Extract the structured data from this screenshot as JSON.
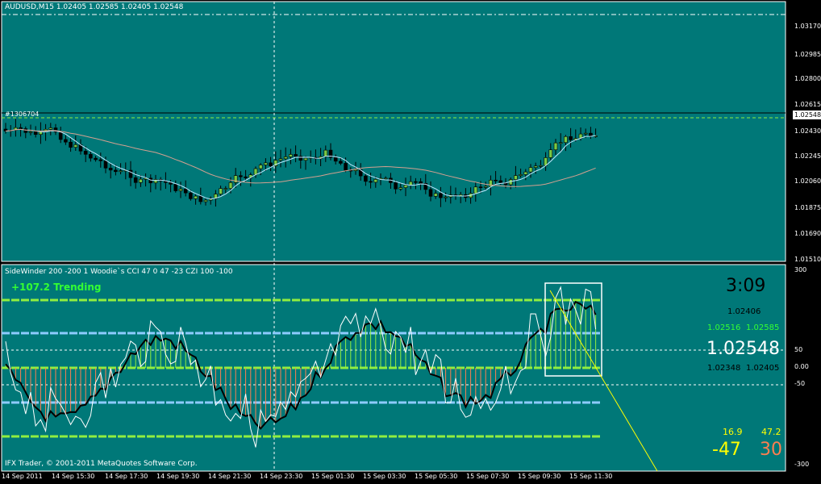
{
  "colors": {
    "bg": "#007878",
    "panel": "#007070",
    "grid": "#ffffff",
    "bull": "#7ac943",
    "bear": "#000000",
    "green_line": "#90ee40",
    "blue_line": "#8ecbff",
    "yellow": "#ffff00",
    "orange": "#ff7f50"
  },
  "main": {
    "header": "AUDUSD,M15  1.02405 1.02585 1.02405 1.02548",
    "price_label": "#1306704",
    "current_price": "1.02548",
    "scale": [
      "1.03170",
      "1.02985",
      "1.02800",
      "1.02615",
      "1.02430",
      "1.02245",
      "1.02060",
      "1.01875",
      "1.01690",
      "1.01510"
    ]
  },
  "indicator": {
    "header": "SideWinder 200 -200 1  Woodie`s CCI 47 0 47 -23  CZI 100 -100",
    "trend_text": "+107.2 Trending",
    "timer": "3:09",
    "open": "1.02406",
    "high_row": [
      "1.02516",
      "1.02585"
    ],
    "price": "1.02548",
    "low_row": [
      "1.02348",
      "1.02405"
    ],
    "small_vals": [
      "16.9",
      "47.2"
    ],
    "big_vals": [
      "-47",
      "30"
    ],
    "scale": [
      "300",
      "50",
      "0.00",
      "-50",
      "-300"
    ],
    "copyright": "IFX Trader, © 2001-2011 MetaQuotes Software Corp."
  },
  "time_axis": [
    "14 Sep 2011",
    "14 Sep 15:30",
    "14 Sep 17:30",
    "14 Sep 19:30",
    "14 Sep 21:30",
    "14 Sep 23:30",
    "15 Sep 01:30",
    "15 Sep 03:30",
    "15 Sep 05:30",
    "15 Sep 07:30",
    "15 Sep 09:30",
    "15 Sep 11:30"
  ]
}
